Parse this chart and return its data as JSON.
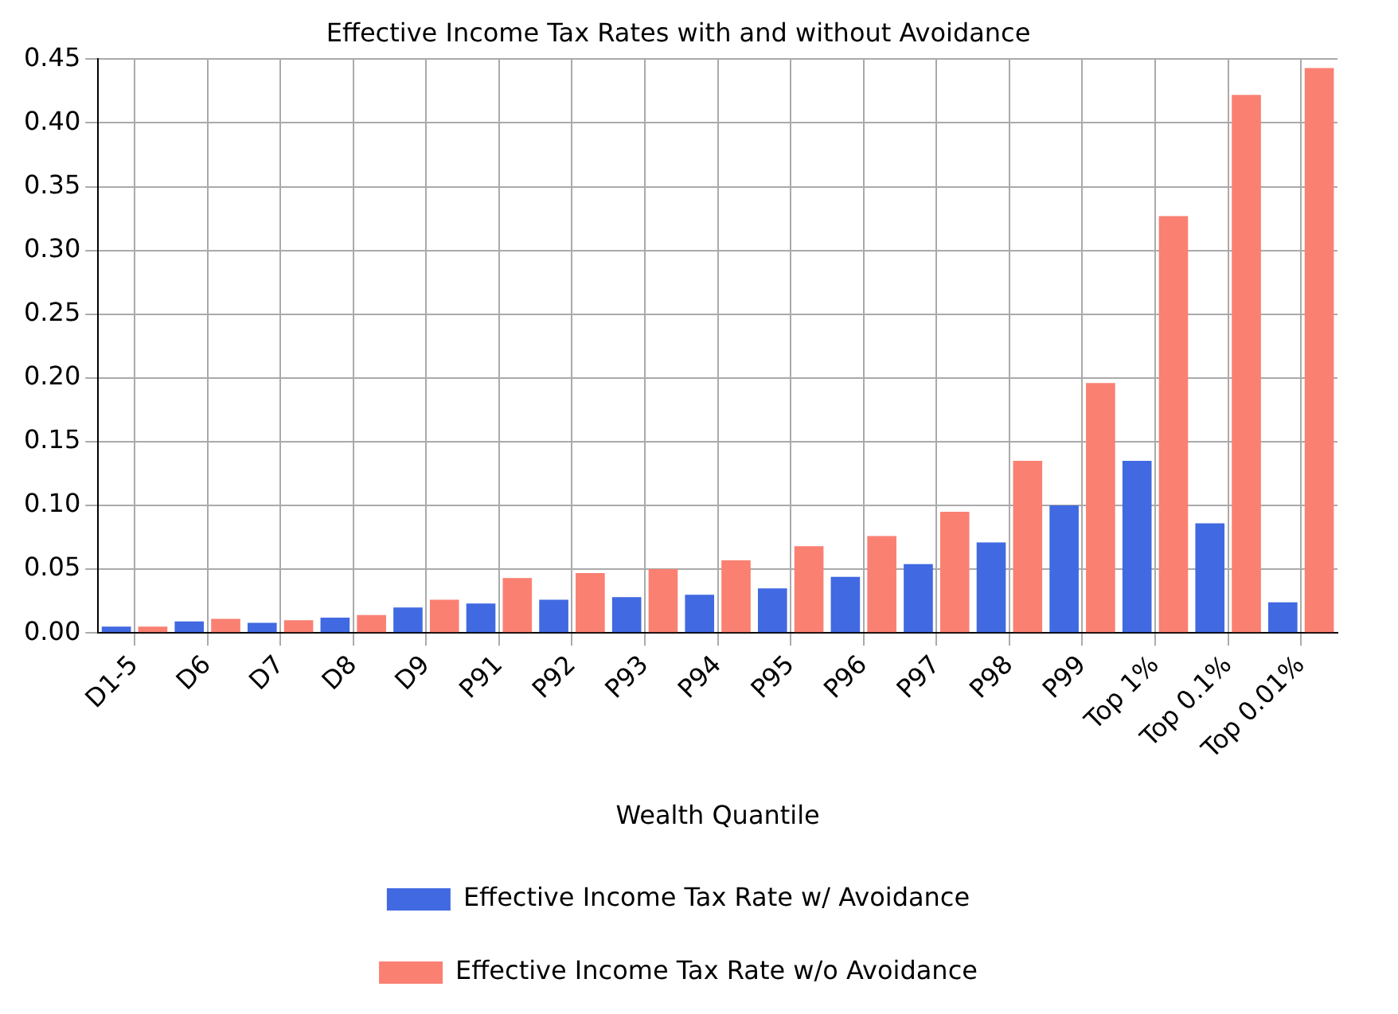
{
  "chart_data": {
    "type": "bar",
    "title": "Effective Income Tax Rates with and without Avoidance",
    "xlabel": "Wealth Quantile",
    "categories": [
      "D1-5",
      "D6",
      "D7",
      "D8",
      "D9",
      "P91",
      "P92",
      "P93",
      "P94",
      "P95",
      "P96",
      "P97",
      "P98",
      "P99",
      "Top 1%",
      "Top 0.1%",
      "Top 0.01%"
    ],
    "series": [
      {
        "name": "Effective Income Tax Rate w/ Avoidance",
        "color": "#4169e1",
        "values": [
          0.005,
          0.009,
          0.008,
          0.012,
          0.02,
          0.023,
          0.026,
          0.028,
          0.03,
          0.035,
          0.044,
          0.054,
          0.071,
          0.1,
          0.135,
          0.086,
          0.024
        ]
      },
      {
        "name": "Effective Income Tax Rate w/o Avoidance",
        "color": "#fa8072",
        "values": [
          0.005,
          0.011,
          0.01,
          0.014,
          0.026,
          0.043,
          0.047,
          0.05,
          0.057,
          0.068,
          0.076,
          0.095,
          0.135,
          0.196,
          0.327,
          0.422,
          0.443
        ]
      }
    ],
    "ylim": [
      0,
      0.45
    ],
    "yticks": [
      {
        "value": 0,
        "label": "0.00"
      },
      {
        "value": 0.05,
        "label": "0.05"
      },
      {
        "value": 0.1,
        "label": "0.10"
      },
      {
        "value": 0.15,
        "label": "0.15"
      },
      {
        "value": 0.2,
        "label": "0.20"
      },
      {
        "value": 0.25,
        "label": "0.25"
      },
      {
        "value": 0.3,
        "label": "0.30"
      },
      {
        "value": 0.35,
        "label": "0.35"
      },
      {
        "value": 0.4,
        "label": "0.40"
      },
      {
        "value": 0.45,
        "label": "0.45"
      }
    ],
    "grid": true,
    "legend": "bottom"
  }
}
